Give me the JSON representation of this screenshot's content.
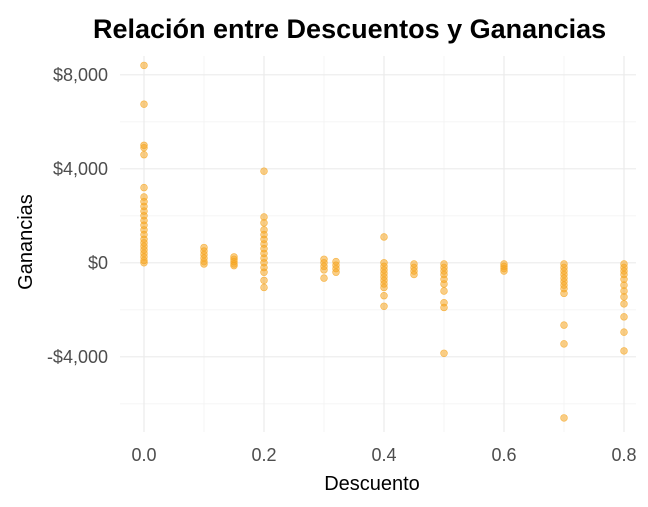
{
  "chart_data": {
    "type": "scatter",
    "title": "Relación entre Descuentos y Ganancias",
    "xlabel": "Descuento",
    "ylabel": "Ganancias",
    "xlim": [
      -0.04,
      0.82
    ],
    "ylim": [
      -7200,
      8800
    ],
    "x_ticks": [
      0.0,
      0.2,
      0.4,
      0.6,
      0.8
    ],
    "x_tick_labels": [
      "0.0",
      "0.2",
      "0.4",
      "0.6",
      "0.8"
    ],
    "y_ticks": [
      -4000,
      0,
      4000,
      8000
    ],
    "y_tick_labels": [
      "-$4,000",
      "$0",
      "$4,000",
      "$8,000"
    ],
    "grid": true,
    "legend": "none",
    "point_color": "#f5a623",
    "points": [
      [
        0.0,
        8400
      ],
      [
        0.0,
        6750
      ],
      [
        0.0,
        5000
      ],
      [
        0.0,
        4900
      ],
      [
        0.0,
        4600
      ],
      [
        0.0,
        3200
      ],
      [
        0.0,
        2800
      ],
      [
        0.0,
        2600
      ],
      [
        0.0,
        2400
      ],
      [
        0.0,
        2200
      ],
      [
        0.0,
        2000
      ],
      [
        0.0,
        1800
      ],
      [
        0.0,
        1600
      ],
      [
        0.0,
        1400
      ],
      [
        0.0,
        1200
      ],
      [
        0.0,
        1000
      ],
      [
        0.0,
        850
      ],
      [
        0.0,
        700
      ],
      [
        0.0,
        550
      ],
      [
        0.0,
        400
      ],
      [
        0.0,
        250
      ],
      [
        0.0,
        100
      ],
      [
        0.0,
        0
      ],
      [
        0.1,
        650
      ],
      [
        0.1,
        500
      ],
      [
        0.1,
        350
      ],
      [
        0.1,
        200
      ],
      [
        0.1,
        50
      ],
      [
        0.1,
        -50
      ],
      [
        0.15,
        250
      ],
      [
        0.15,
        150
      ],
      [
        0.15,
        50
      ],
      [
        0.15,
        -50
      ],
      [
        0.15,
        -120
      ],
      [
        0.2,
        3900
      ],
      [
        0.2,
        1950
      ],
      [
        0.2,
        1700
      ],
      [
        0.2,
        1400
      ],
      [
        0.2,
        1200
      ],
      [
        0.2,
        1000
      ],
      [
        0.2,
        800
      ],
      [
        0.2,
        600
      ],
      [
        0.2,
        400
      ],
      [
        0.2,
        200
      ],
      [
        0.2,
        0
      ],
      [
        0.2,
        -200
      ],
      [
        0.2,
        -400
      ],
      [
        0.2,
        -750
      ],
      [
        0.2,
        -1050
      ],
      [
        0.3,
        150
      ],
      [
        0.3,
        0
      ],
      [
        0.3,
        -150
      ],
      [
        0.3,
        -300
      ],
      [
        0.3,
        -650
      ],
      [
        0.32,
        50
      ],
      [
        0.32,
        -100
      ],
      [
        0.32,
        -250
      ],
      [
        0.32,
        -400
      ],
      [
        0.4,
        1100
      ],
      [
        0.4,
        0
      ],
      [
        0.4,
        -150
      ],
      [
        0.4,
        -300
      ],
      [
        0.4,
        -450
      ],
      [
        0.4,
        -600
      ],
      [
        0.4,
        -750
      ],
      [
        0.4,
        -900
      ],
      [
        0.4,
        -1050
      ],
      [
        0.4,
        -1400
      ],
      [
        0.4,
        -1850
      ],
      [
        0.45,
        -50
      ],
      [
        0.45,
        -200
      ],
      [
        0.45,
        -350
      ],
      [
        0.45,
        -500
      ],
      [
        0.5,
        -50
      ],
      [
        0.5,
        -200
      ],
      [
        0.5,
        -350
      ],
      [
        0.5,
        -500
      ],
      [
        0.5,
        -700
      ],
      [
        0.5,
        -900
      ],
      [
        0.5,
        -1200
      ],
      [
        0.5,
        -1700
      ],
      [
        0.5,
        -1900
      ],
      [
        0.5,
        -3850
      ],
      [
        0.6,
        -50
      ],
      [
        0.6,
        -150
      ],
      [
        0.6,
        -250
      ],
      [
        0.6,
        -350
      ],
      [
        0.7,
        -50
      ],
      [
        0.7,
        -200
      ],
      [
        0.7,
        -350
      ],
      [
        0.7,
        -500
      ],
      [
        0.7,
        -650
      ],
      [
        0.7,
        -800
      ],
      [
        0.7,
        -950
      ],
      [
        0.7,
        -1100
      ],
      [
        0.7,
        -1300
      ],
      [
        0.7,
        -2650
      ],
      [
        0.7,
        -3450
      ],
      [
        0.7,
        -6600
      ],
      [
        0.8,
        -50
      ],
      [
        0.8,
        -200
      ],
      [
        0.8,
        -350
      ],
      [
        0.8,
        -500
      ],
      [
        0.8,
        -700
      ],
      [
        0.8,
        -950
      ],
      [
        0.8,
        -1200
      ],
      [
        0.8,
        -1450
      ],
      [
        0.8,
        -1750
      ],
      [
        0.8,
        -2300
      ],
      [
        0.8,
        -2950
      ],
      [
        0.8,
        -3750
      ]
    ]
  }
}
